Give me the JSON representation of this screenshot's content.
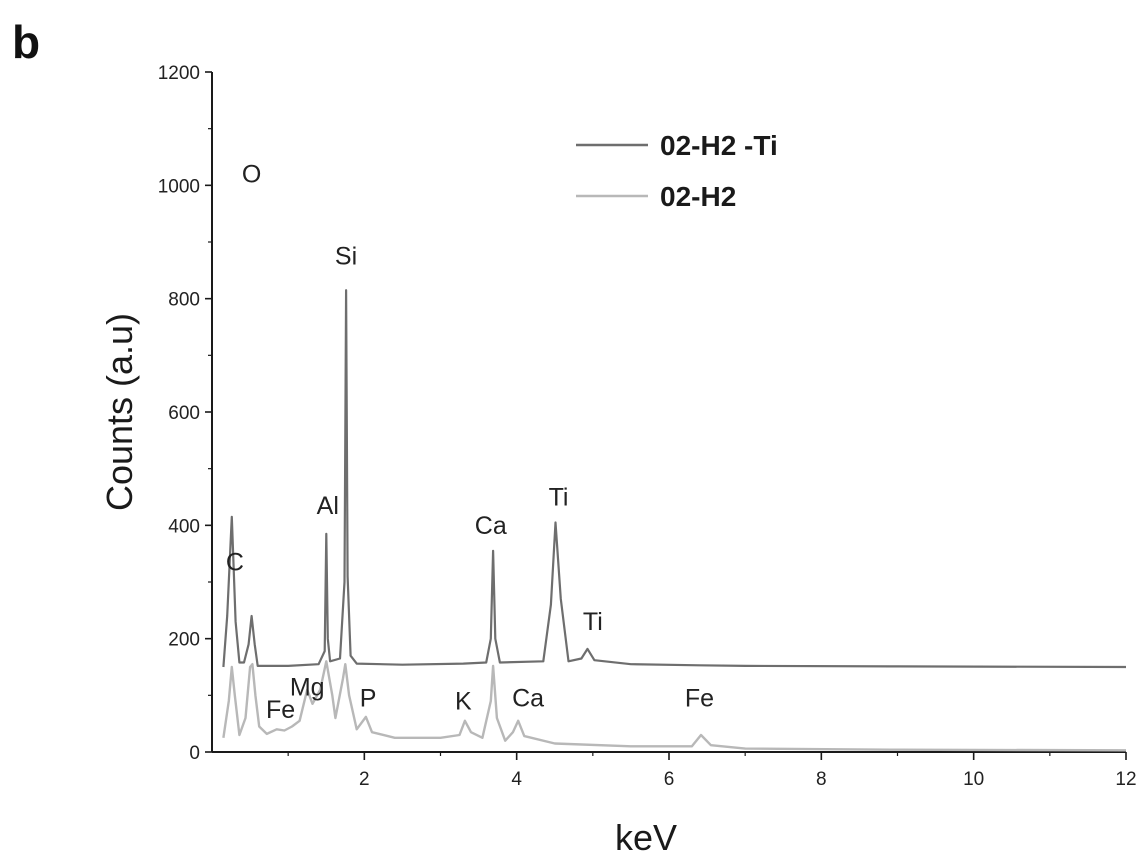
{
  "panel_label": "b",
  "chart_data": {
    "type": "line",
    "xlabel": "keV",
    "ylabel": "Counts (a.u)",
    "xlim": [
      0,
      12
    ],
    "ylim": [
      0,
      1200
    ],
    "x_ticks": [
      2,
      4,
      6,
      8,
      10,
      12
    ],
    "x_tick_labels": [
      "2",
      "4",
      "6",
      "8",
      "10",
      "12"
    ],
    "y_ticks": [
      0,
      200,
      400,
      600,
      800,
      1000,
      1200
    ],
    "y_tick_labels": [
      "0",
      "200",
      "400",
      "600",
      "800",
      "1000",
      "1200"
    ],
    "grid": false,
    "legend": {
      "placement": "top-right",
      "entries": [
        {
          "name": "02-H2 -Ti",
          "color": "#6e6e6e"
        },
        {
          "name": "02-H2",
          "color": "#b8b8b8"
        }
      ]
    },
    "series": [
      {
        "name": "02-H2 -Ti",
        "color": "#6e6e6e",
        "baseline": 150,
        "points": [
          [
            0.15,
            150
          ],
          [
            0.2,
            240
          ],
          [
            0.26,
            415
          ],
          [
            0.31,
            230
          ],
          [
            0.36,
            158
          ],
          [
            0.42,
            158
          ],
          [
            0.48,
            190
          ],
          [
            0.52,
            240
          ],
          [
            0.56,
            190
          ],
          [
            0.6,
            152
          ],
          [
            1.0,
            152
          ],
          [
            1.4,
            155
          ],
          [
            1.48,
            178
          ],
          [
            1.5,
            385
          ],
          [
            1.52,
            200
          ],
          [
            1.55,
            160
          ],
          [
            1.68,
            165
          ],
          [
            1.74,
            300
          ],
          [
            1.76,
            815
          ],
          [
            1.78,
            310
          ],
          [
            1.82,
            170
          ],
          [
            1.9,
            156
          ],
          [
            2.5,
            154
          ],
          [
            3.3,
            156
          ],
          [
            3.6,
            158
          ],
          [
            3.66,
            200
          ],
          [
            3.69,
            355
          ],
          [
            3.72,
            200
          ],
          [
            3.78,
            158
          ],
          [
            4.35,
            160
          ],
          [
            4.45,
            260
          ],
          [
            4.51,
            405
          ],
          [
            4.58,
            270
          ],
          [
            4.68,
            160
          ],
          [
            4.85,
            165
          ],
          [
            4.93,
            182
          ],
          [
            5.02,
            162
          ],
          [
            5.5,
            155
          ],
          [
            6.4,
            153
          ],
          [
            7.0,
            152
          ],
          [
            9.0,
            151
          ],
          [
            12.0,
            150
          ]
        ]
      },
      {
        "name": "02-H2",
        "color": "#b8b8b8",
        "baseline": 0,
        "points": [
          [
            0.15,
            25
          ],
          [
            0.22,
            90
          ],
          [
            0.26,
            150
          ],
          [
            0.3,
            100
          ],
          [
            0.36,
            30
          ],
          [
            0.44,
            60
          ],
          [
            0.5,
            150
          ],
          [
            0.53,
            155
          ],
          [
            0.57,
            100
          ],
          [
            0.62,
            45
          ],
          [
            0.72,
            32
          ],
          [
            0.85,
            40
          ],
          [
            0.95,
            38
          ],
          [
            1.05,
            45
          ],
          [
            1.15,
            55
          ],
          [
            1.25,
            110
          ],
          [
            1.32,
            85
          ],
          [
            1.42,
            110
          ],
          [
            1.5,
            160
          ],
          [
            1.58,
            100
          ],
          [
            1.62,
            60
          ],
          [
            1.72,
            130
          ],
          [
            1.75,
            155
          ],
          [
            1.8,
            100
          ],
          [
            1.9,
            40
          ],
          [
            2.02,
            62
          ],
          [
            2.1,
            35
          ],
          [
            2.4,
            25
          ],
          [
            3.0,
            25
          ],
          [
            3.25,
            30
          ],
          [
            3.32,
            55
          ],
          [
            3.4,
            35
          ],
          [
            3.55,
            25
          ],
          [
            3.66,
            90
          ],
          [
            3.69,
            152
          ],
          [
            3.74,
            60
          ],
          [
            3.85,
            20
          ],
          [
            3.95,
            35
          ],
          [
            4.02,
            55
          ],
          [
            4.1,
            28
          ],
          [
            4.5,
            15
          ],
          [
            5.5,
            10
          ],
          [
            6.3,
            10
          ],
          [
            6.42,
            30
          ],
          [
            6.55,
            12
          ],
          [
            7.0,
            6
          ],
          [
            9.0,
            4
          ],
          [
            12.0,
            3
          ]
        ]
      }
    ],
    "annotations": [
      {
        "text": "O",
        "x": 0.52,
        "y": 1005
      },
      {
        "text": "C",
        "x": 0.3,
        "y": 320
      },
      {
        "text": "Si",
        "x": 1.76,
        "y": 860
      },
      {
        "text": "Al",
        "x": 1.52,
        "y": 420
      },
      {
        "text": "Ca",
        "x": 3.66,
        "y": 385
      },
      {
        "text": "Ti",
        "x": 4.55,
        "y": 435
      },
      {
        "text": "Ti",
        "x": 5.0,
        "y": 215
      },
      {
        "text": "Mg",
        "x": 1.25,
        "y": 100
      },
      {
        "text": "Fe",
        "x": 0.9,
        "y": 60
      },
      {
        "text": "P",
        "x": 2.05,
        "y": 80
      },
      {
        "text": "K",
        "x": 3.3,
        "y": 75
      },
      {
        "text": "Ca",
        "x": 4.15,
        "y": 80
      },
      {
        "text": "Fe",
        "x": 6.4,
        "y": 80
      }
    ]
  }
}
